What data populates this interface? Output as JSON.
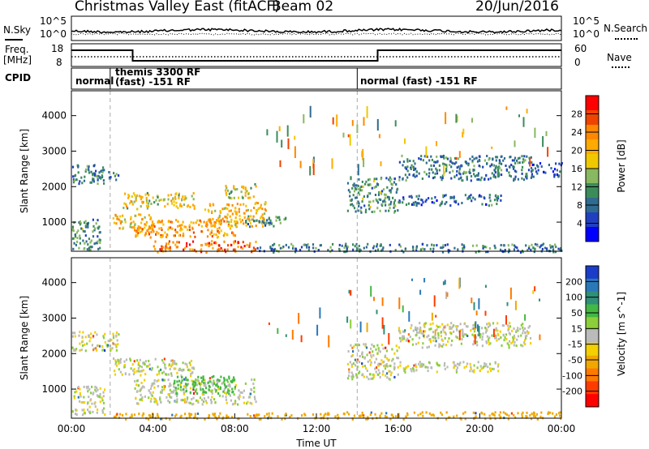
{
  "header": {
    "title": "Christmas Valley East (fitACF)",
    "beam": "Beam 02",
    "date": "20/Jun/2016"
  },
  "nsky_panel": {
    "left_label": "N.Sky",
    "right_label": "N.Search",
    "left_ticks": [
      "10^5",
      "10^0"
    ],
    "right_ticks": [
      "10^5",
      "10^0"
    ]
  },
  "freq_panel": {
    "left_label_line1": "Freq.",
    "left_label_line2": "[MHz]",
    "left_ticks": [
      "18",
      "8"
    ],
    "right_label": "Nave",
    "right_ticks": [
      "60",
      "0"
    ]
  },
  "cpid_panel": {
    "label": "CPID",
    "segments": [
      {
        "start_hour": 0.0,
        "text": "normal"
      },
      {
        "start_hour": 1.9,
        "text": "themis 3300 RF",
        "text2": "(fast) -151 RF"
      },
      {
        "start_hour": 14.0,
        "text": "normal (fast) -151 RF"
      }
    ]
  },
  "power_colorbar": {
    "label": "Power [dB]",
    "ticks": [
      "28",
      "24",
      "20",
      "16",
      "12",
      "8",
      "4"
    ],
    "colors": [
      "#ff0000",
      "#ee4400",
      "#ff8800",
      "#ffaa00",
      "#f0c800",
      "#88b860",
      "#3c8c5a",
      "#2f6b8f",
      "#2040c0",
      "#0000ff"
    ]
  },
  "velocity_colorbar": {
    "label": "Velocity [m s^-1]",
    "ticks": [
      "200",
      "100",
      "50",
      "15",
      "-15",
      "-50",
      "-100",
      "-200"
    ],
    "colors": [
      "#1a3cc8",
      "#2a78b8",
      "#2f8f78",
      "#43b843",
      "#8ccf3a",
      "#bbbbbb",
      "#f4d000",
      "#f0a800",
      "#ff7a00",
      "#ff3c00",
      "#ff0000"
    ]
  },
  "xaxis": {
    "label": "Time UT",
    "ticks": [
      "00:00",
      "04:00",
      "08:00",
      "12:00",
      "16:00",
      "20:00",
      "00:00"
    ]
  },
  "chart_data": [
    {
      "type": "heatmap",
      "name": "power",
      "ylabel": "Slant Range [km]",
      "xlabel": "",
      "yticks": [
        1000,
        2000,
        3000,
        4000
      ],
      "ylim": [
        180,
        4700
      ],
      "xlim": [
        0,
        24
      ],
      "dashed_lines_hours": [
        1.9,
        14.0
      ],
      "blobs": [
        {
          "t0": 0.0,
          "t1": 1.4,
          "r0": 200,
          "r1": 1100,
          "value": 12
        },
        {
          "t0": 0.0,
          "t1": 1.6,
          "r0": 2100,
          "r1": 2650,
          "value": 10
        },
        {
          "t0": 1.0,
          "t1": 2.4,
          "r0": 2200,
          "r1": 2500,
          "value": 10
        },
        {
          "t0": 2.0,
          "t1": 4.0,
          "r0": 800,
          "r1": 1250,
          "value": 20
        },
        {
          "t0": 2.5,
          "t1": 6.0,
          "r0": 1400,
          "r1": 1850,
          "value": 18
        },
        {
          "t0": 3.0,
          "t1": 8.0,
          "r0": 600,
          "r1": 1100,
          "value": 22
        },
        {
          "t0": 4.0,
          "t1": 9.0,
          "r0": 180,
          "r1": 500,
          "value": 25
        },
        {
          "t0": 6.5,
          "t1": 9.5,
          "r0": 900,
          "r1": 1600,
          "value": 20
        },
        {
          "t0": 7.5,
          "t1": 9.0,
          "r0": 1700,
          "r1": 2100,
          "value": 16
        },
        {
          "t0": 8.5,
          "t1": 10.5,
          "r0": 900,
          "r1": 1200,
          "value": 12
        },
        {
          "t0": 9.0,
          "t1": 24.0,
          "r0": 180,
          "r1": 420,
          "value": 10
        },
        {
          "t0": 13.5,
          "t1": 16.0,
          "r0": 1300,
          "r1": 2300,
          "value": 12
        },
        {
          "t0": 16.0,
          "t1": 21.0,
          "r0": 1500,
          "r1": 1800,
          "value": 9
        },
        {
          "t0": 16.0,
          "t1": 22.5,
          "r0": 2200,
          "r1": 2900,
          "value": 10
        },
        {
          "t0": 22.5,
          "t1": 24.0,
          "r0": 2300,
          "r1": 2700,
          "value": 8
        }
      ]
    },
    {
      "type": "heatmap",
      "name": "velocity",
      "ylabel": "Slant Range [km]",
      "xlabel": "Time UT",
      "yticks": [
        1000,
        2000,
        3000,
        4000
      ],
      "ylim": [
        180,
        4700
      ],
      "xlim": [
        0,
        24
      ],
      "dashed_lines_hours": [
        1.9,
        14.0
      ],
      "blobs": [
        {
          "t0": 0.0,
          "t1": 1.6,
          "r0": 300,
          "r1": 1100,
          "value": 0
        },
        {
          "t0": 0.0,
          "t1": 2.3,
          "r0": 2100,
          "r1": 2650,
          "value": 0
        },
        {
          "t0": 2.0,
          "t1": 6.0,
          "r0": 1400,
          "r1": 1900,
          "value": 0
        },
        {
          "t0": 3.0,
          "t1": 9.0,
          "r0": 600,
          "r1": 1300,
          "value": 0
        },
        {
          "t0": 5.0,
          "t1": 8.0,
          "r0": 900,
          "r1": 1400,
          "value": 30
        },
        {
          "t0": 2.0,
          "t1": 12.0,
          "r0": 180,
          "r1": 350,
          "value": -40
        },
        {
          "t0": 12.0,
          "t1": 24.0,
          "r0": 180,
          "r1": 380,
          "value": -40
        },
        {
          "t0": 13.5,
          "t1": 16.0,
          "r0": 1300,
          "r1": 2300,
          "value": 0
        },
        {
          "t0": 16.0,
          "t1": 22.5,
          "r0": 2200,
          "r1": 2900,
          "value": 0
        },
        {
          "t0": 16.0,
          "t1": 21.0,
          "r0": 1500,
          "r1": 1800,
          "value": 0
        }
      ]
    }
  ]
}
